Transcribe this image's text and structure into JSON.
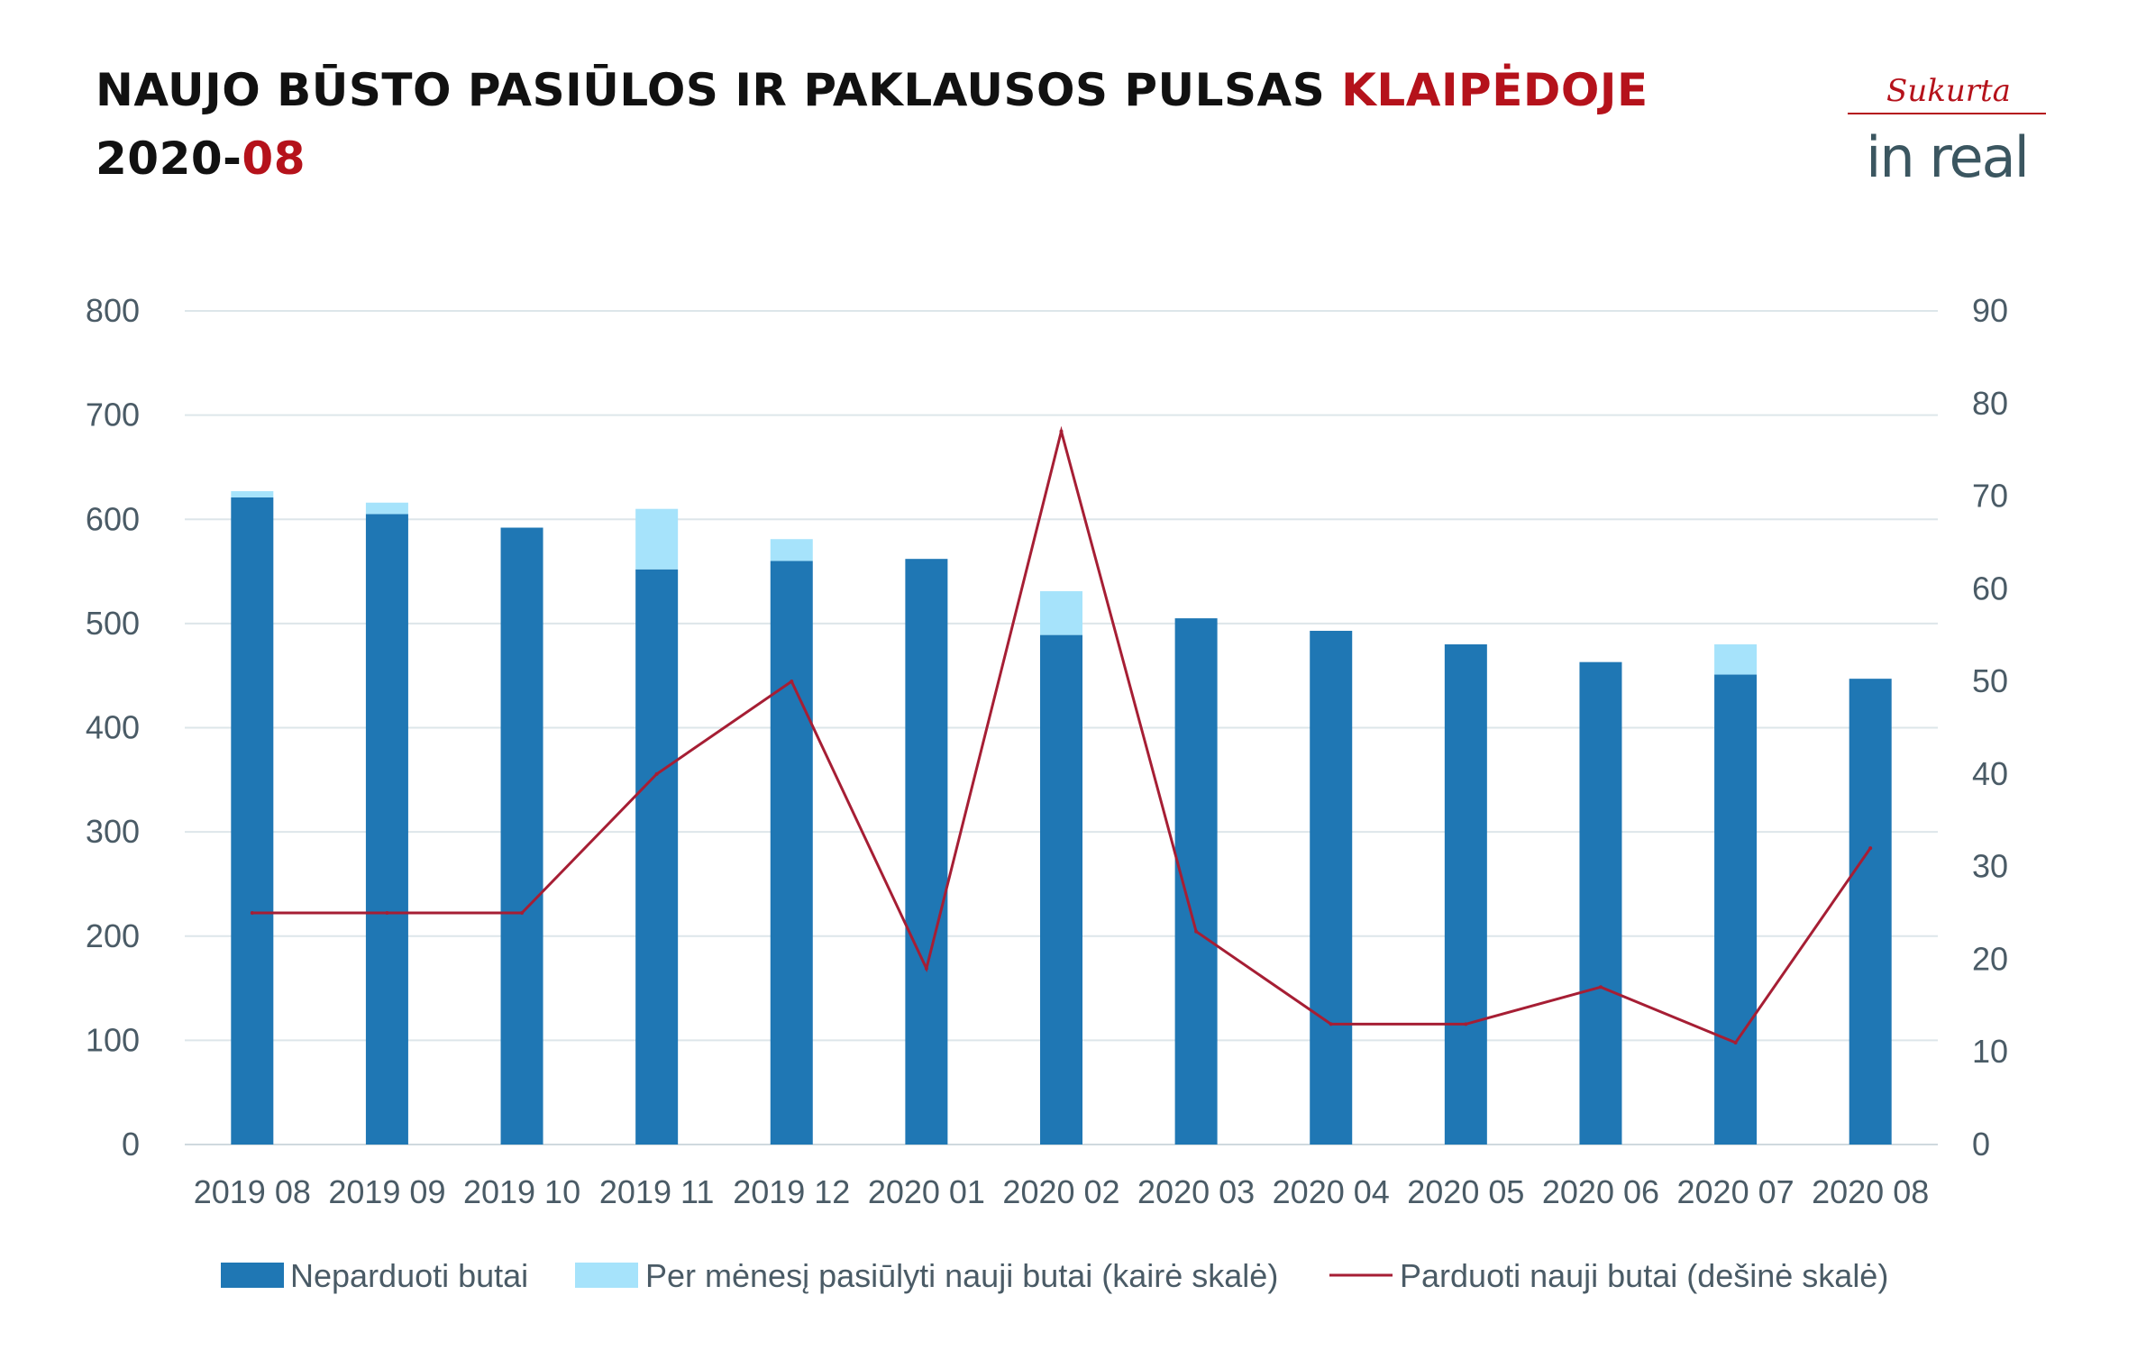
{
  "header": {
    "title_main": "NAUJO BŪSTO PASIŪLOS IR PAKLAUSOS PULSAS",
    "title_city": "KLAIPĖDOJE",
    "title_year": "2020-",
    "title_month": "08"
  },
  "logo": {
    "script_text": "Sukurta",
    "brand_text": "in real",
    "script_color": "#b5121b",
    "brand_color": "#3b5660"
  },
  "colors": {
    "unsold": "#1f77b4",
    "offered": "#a6e3fb",
    "sold_line": "#a61e34",
    "grid": "#dde6ea",
    "tick_text": "#4a5b66",
    "accent": "#b5121b"
  },
  "chart_data": {
    "type": "bar",
    "categories": [
      "2019 08",
      "2019 09",
      "2019 10",
      "2019 11",
      "2019 12",
      "2020 01",
      "2020 02",
      "2020 03",
      "2020 04",
      "2020 05",
      "2020 06",
      "2020 07",
      "2020 08"
    ],
    "series": [
      {
        "name": "Neparduoti butai",
        "kind": "bar",
        "stack": "a",
        "axis": "left",
        "values": [
          621,
          605,
          592,
          552,
          560,
          562,
          489,
          505,
          493,
          480,
          463,
          451,
          447
        ]
      },
      {
        "name": "Per mėnesį pasiūlyti nauji butai (kairė skalė)",
        "kind": "bar",
        "stack": "a",
        "axis": "left",
        "values": [
          6,
          11,
          0,
          58,
          21,
          0,
          42,
          0,
          0,
          0,
          0,
          29,
          0
        ]
      },
      {
        "name": "Parduoti nauji butai (dešinė skalė)",
        "kind": "line",
        "axis": "right",
        "values": [
          25,
          25,
          25,
          40,
          50,
          19,
          77,
          23,
          13,
          13,
          17,
          11,
          32
        ]
      }
    ],
    "y_left": {
      "min": 0,
      "max": 800,
      "ticks": [
        0,
        100,
        200,
        300,
        400,
        500,
        600,
        700,
        800
      ]
    },
    "y_right": {
      "min": 0,
      "max": 90,
      "ticks": [
        0,
        10,
        20,
        30,
        40,
        50,
        60,
        70,
        80,
        90
      ]
    },
    "grid": true,
    "legend_position": "bottom"
  }
}
